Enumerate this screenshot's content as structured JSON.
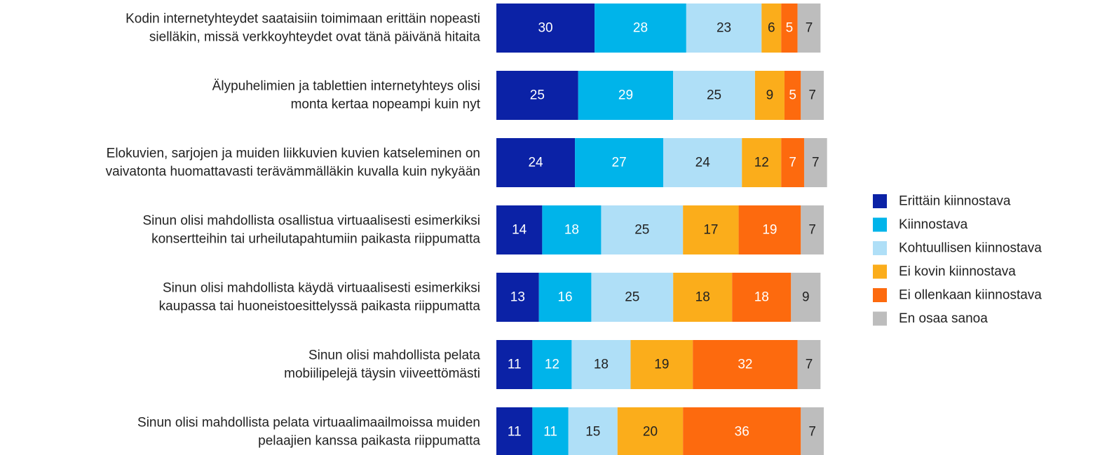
{
  "chart_data": {
    "type": "stacked_barh",
    "categories": [
      [
        "Kodin internetyhteydet saataisiin toimimaan erittäin nopeasti",
        "sielläkin, missä verkkoyhteydet ovat tänä päivänä hitaita"
      ],
      [
        "Älypuhelimien ja tablettien internetyhteys olisi",
        "monta kertaa nopeampi kuin nyt"
      ],
      [
        "Elokuvien, sarjojen ja muiden liikkuvien kuvien katseleminen on",
        "vaivatonta huomattavasti terävämmälläkin kuvalla kuin nykyään"
      ],
      [
        "Sinun olisi mahdollista osallistua virtuaalisesti esimerkiksi",
        "konsertteihin tai urheilutapahtumiin paikasta riippumatta"
      ],
      [
        "Sinun olisi mahdollista käydä virtuaalisesti esimerkiksi",
        "kaupassa tai huoneistoesittelyssä paikasta riippumatta"
      ],
      [
        "Sinun olisi mahdollista pelata",
        "mobiilipelejä täysin viiveettömästi"
      ],
      [
        "Sinun olisi mahdollista pelata virtuaalimaailmoissa muiden",
        "pelaajien kanssa paikasta riippumatta"
      ]
    ],
    "series": [
      {
        "name": "Erittäin kiinnostava",
        "color": "#0b22a6",
        "values": [
          30,
          25,
          24,
          14,
          13,
          11,
          11
        ]
      },
      {
        "name": "Kiinnostava",
        "color": "#00b4ea",
        "values": [
          28,
          29,
          27,
          18,
          16,
          12,
          11
        ]
      },
      {
        "name": "Kohtuullisen kiinnostava",
        "color": "#afdff7",
        "values": [
          23,
          25,
          24,
          25,
          25,
          18,
          15
        ]
      },
      {
        "name": "Ei kovin kiinnostava",
        "color": "#fbad1b",
        "values": [
          6,
          9,
          12,
          17,
          18,
          19,
          20
        ]
      },
      {
        "name": "Ei ollenkaan kiinnostava",
        "color": "#fd6a0e",
        "values": [
          5,
          5,
          7,
          19,
          18,
          32,
          36
        ]
      },
      {
        "name": "En osaa sanoa",
        "color": "#bdbdbd",
        "values": [
          7,
          7,
          7,
          7,
          9,
          7,
          7
        ]
      }
    ],
    "xlim": [
      0,
      100
    ],
    "legend": "right"
  }
}
